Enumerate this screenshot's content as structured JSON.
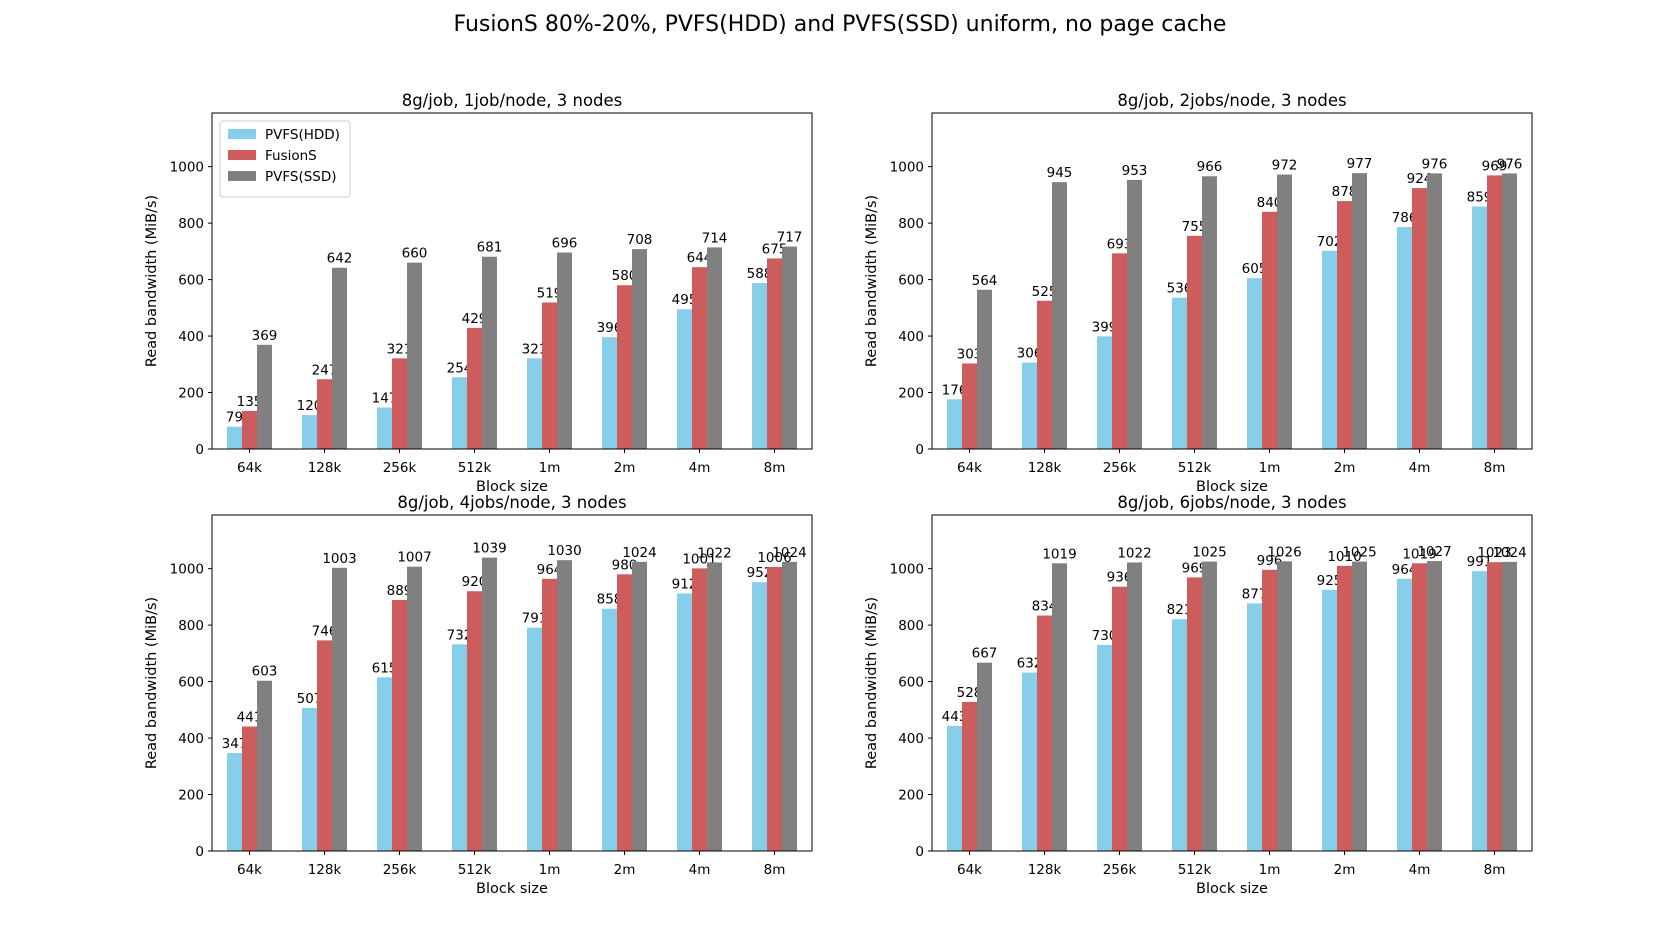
{
  "figure": {
    "suptitle": "FusionS 80%-20%, PVFS(HDD) and PVFS(SSD) uniform, no page cache"
  },
  "legend_entries": [
    {
      "name": "PVFS(HDD)",
      "color": "#87CEEB"
    },
    {
      "name": "FusionS",
      "color": "#CD5C5C"
    },
    {
      "name": "PVFS(SSD)",
      "color": "#808080"
    }
  ],
  "chart_data": [
    {
      "type": "bar",
      "title": "8g/job, 1job/node, 3 nodes",
      "xlabel": "Block size",
      "ylabel": "Read bandwidth (MiB/s)",
      "ylim": [
        0,
        1190
      ],
      "yticks": [
        0,
        200,
        400,
        600,
        800,
        1000
      ],
      "legend": "top-left",
      "categories": [
        "64k",
        "128k",
        "256k",
        "512k",
        "1m",
        "2m",
        "4m",
        "8m"
      ],
      "series": [
        {
          "name": "PVFS(HDD)",
          "color": "#87CEEB",
          "values": [
            79,
            120,
            147,
            254,
            321,
            396,
            495,
            588
          ]
        },
        {
          "name": "FusionS",
          "color": "#CD5C5C",
          "values": [
            135,
            247,
            321,
            429,
            519,
            580,
            644,
            675
          ]
        },
        {
          "name": "PVFS(SSD)",
          "color": "#808080",
          "values": [
            369,
            642,
            660,
            681,
            696,
            708,
            714,
            717
          ]
        }
      ]
    },
    {
      "type": "bar",
      "title": "8g/job, 2jobs/node, 3 nodes",
      "xlabel": "Block size",
      "ylabel": "Read bandwidth (MiB/s)",
      "ylim": [
        0,
        1190
      ],
      "yticks": [
        0,
        200,
        400,
        600,
        800,
        1000
      ],
      "categories": [
        "64k",
        "128k",
        "256k",
        "512k",
        "1m",
        "2m",
        "4m",
        "8m"
      ],
      "series": [
        {
          "name": "PVFS(HDD)",
          "color": "#87CEEB",
          "values": [
            176,
            306,
            399,
            536,
            605,
            702,
            786,
            859
          ]
        },
        {
          "name": "FusionS",
          "color": "#CD5C5C",
          "values": [
            303,
            525,
            693,
            755,
            840,
            878,
            924,
            969
          ]
        },
        {
          "name": "PVFS(SSD)",
          "color": "#808080",
          "values": [
            564,
            945,
            953,
            966,
            972,
            977,
            976,
            976
          ]
        }
      ]
    },
    {
      "type": "bar",
      "title": "8g/job, 4jobs/node, 3 nodes",
      "xlabel": "Block size",
      "ylabel": "Read bandwidth (MiB/s)",
      "ylim": [
        0,
        1190
      ],
      "yticks": [
        0,
        200,
        400,
        600,
        800,
        1000
      ],
      "categories": [
        "64k",
        "128k",
        "256k",
        "512k",
        "1m",
        "2m",
        "4m",
        "8m"
      ],
      "series": [
        {
          "name": "PVFS(HDD)",
          "color": "#87CEEB",
          "values": [
            347,
            507,
            615,
            732,
            791,
            858,
            912,
            952
          ]
        },
        {
          "name": "FusionS",
          "color": "#CD5C5C",
          "values": [
            441,
            746,
            889,
            920,
            964,
            980,
            1001,
            1006
          ]
        },
        {
          "name": "PVFS(SSD)",
          "color": "#808080",
          "values": [
            603,
            1003,
            1007,
            1039,
            1030,
            1024,
            1022,
            1024
          ]
        }
      ]
    },
    {
      "type": "bar",
      "title": "8g/job, 6jobs/node, 3 nodes",
      "xlabel": "Block size",
      "ylabel": "Read bandwidth (MiB/s)",
      "ylim": [
        0,
        1190
      ],
      "yticks": [
        0,
        200,
        400,
        600,
        800,
        1000
      ],
      "categories": [
        "64k",
        "128k",
        "256k",
        "512k",
        "1m",
        "2m",
        "4m",
        "8m"
      ],
      "series": [
        {
          "name": "PVFS(HDD)",
          "color": "#87CEEB",
          "values": [
            443,
            632,
            730,
            821,
            877,
            925,
            964,
            991
          ]
        },
        {
          "name": "FusionS",
          "color": "#CD5C5C",
          "values": [
            528,
            834,
            936,
            969,
            996,
            1010,
            1019,
            1023
          ]
        },
        {
          "name": "PVFS(SSD)",
          "color": "#808080",
          "values": [
            667,
            1019,
            1022,
            1025,
            1026,
            1025,
            1027,
            1024
          ]
        }
      ]
    }
  ]
}
